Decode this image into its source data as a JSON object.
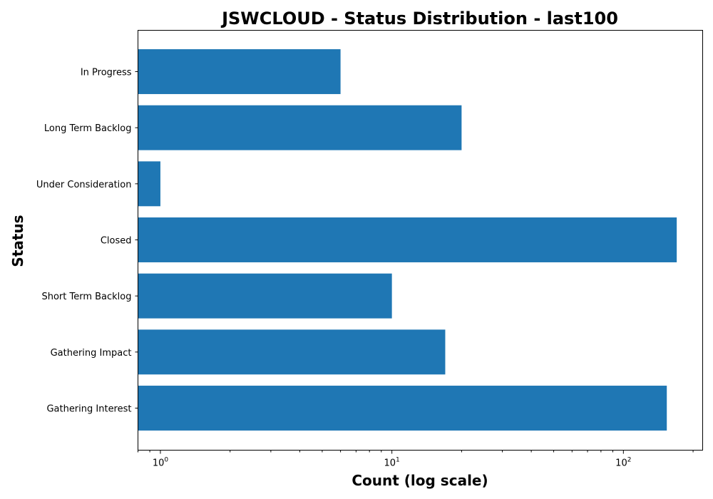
{
  "chart_data": {
    "type": "bar",
    "orientation": "horizontal",
    "title": "JSWCLOUD - Status Distribution - last100",
    "xlabel": "Count (log scale)",
    "ylabel": "Status",
    "x_scale": "log",
    "xlim": [
      0.8,
      220
    ],
    "x_ticks": [
      {
        "value": 1,
        "base": "10",
        "exp": "0"
      },
      {
        "value": 10,
        "base": "10",
        "exp": "1"
      },
      {
        "value": 100,
        "base": "10",
        "exp": "2"
      }
    ],
    "categories": [
      "In Progress",
      "Long Term Backlog",
      "Under Consideration",
      "Closed",
      "Short Term Backlog",
      "Gathering Impact",
      "Gathering Interest"
    ],
    "values": [
      6,
      20,
      1,
      170,
      10,
      17,
      154
    ],
    "bar_color": "#1f77b4",
    "grid": false,
    "legend": "none"
  }
}
